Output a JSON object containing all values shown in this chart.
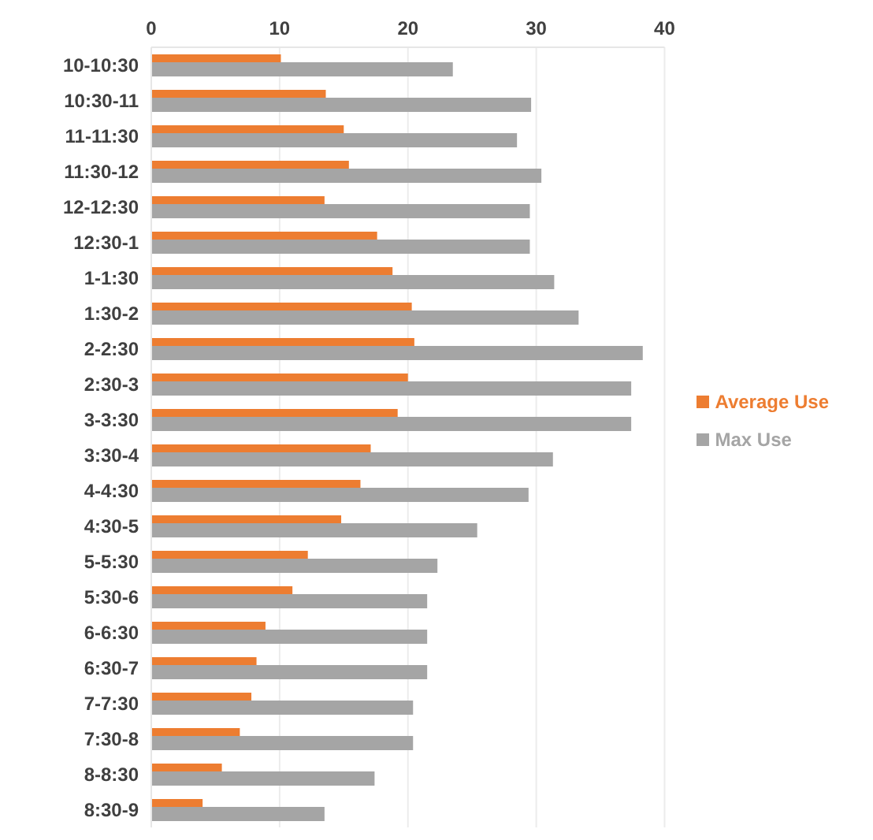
{
  "chart_data": {
    "type": "bar",
    "orientation": "horizontal",
    "categories": [
      "10-10:30",
      "10:30-11",
      "11-11:30",
      "11:30-12",
      "12-12:30",
      "12:30-1",
      "1-1:30",
      "1:30-2",
      "2-2:30",
      "2:30-3",
      "3-3:30",
      "3:30-4",
      "4-4:30",
      "4:30-5",
      "5-5:30",
      "5:30-6",
      "6-6:30",
      "6:30-7",
      "7-7:30",
      "7:30-8",
      "8-8:30",
      "8:30-9"
    ],
    "series": [
      {
        "name": "Average Use",
        "color": "#ed7d31",
        "values": [
          10.1,
          13.6,
          15,
          15.4,
          13.5,
          17.6,
          18.8,
          20.3,
          20.5,
          20,
          19.2,
          17.1,
          16.3,
          14.8,
          12.2,
          11,
          8.9,
          8.2,
          7.8,
          6.9,
          5.5,
          4
        ]
      },
      {
        "name": "Max Use",
        "color": "#a5a5a5",
        "values": [
          23.5,
          29.6,
          28.5,
          30.4,
          29.5,
          29.5,
          31.4,
          33.3,
          38.3,
          37.4,
          37.4,
          31.3,
          29.4,
          25.4,
          22.3,
          21.5,
          21.5,
          21.5,
          20.4,
          20.4,
          17.4,
          13.5
        ]
      }
    ],
    "xlim": [
      0,
      40
    ],
    "xticks": [
      0,
      10,
      20,
      30,
      40
    ],
    "grid": "x",
    "legend": "right"
  }
}
